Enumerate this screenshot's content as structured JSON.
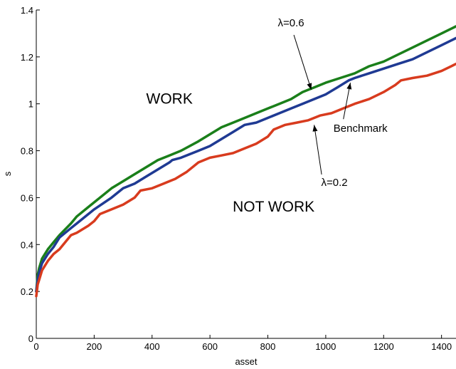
{
  "chart_data": {
    "type": "line",
    "title": "",
    "xlabel": "asset",
    "ylabel": "s",
    "xlim": [
      0,
      1450
    ],
    "ylim": [
      0,
      1.4
    ],
    "xticks": [
      0,
      200,
      400,
      600,
      800,
      1000,
      1200,
      1400
    ],
    "yticks": [
      0,
      0.2,
      0.4,
      0.6,
      0.8,
      1,
      1.2,
      1.4
    ],
    "xtick_labels": [
      "0",
      "200",
      "400",
      "600",
      "800",
      "1000",
      "1200",
      "1400"
    ],
    "ytick_labels": [
      "0",
      "0.2",
      "0.4",
      "0.6",
      "0.8",
      "1",
      "1.2",
      "1.4"
    ],
    "grid": false,
    "series": [
      {
        "color": "#1a7f1a",
        "x": [
          0,
          5,
          10,
          20,
          40,
          60,
          80,
          120,
          140,
          180,
          200,
          260,
          300,
          340,
          380,
          420,
          460,
          500,
          560,
          600,
          640,
          680,
          720,
          760,
          800,
          840,
          880,
          920,
          960,
          1000,
          1050,
          1100,
          1150,
          1200,
          1250,
          1300,
          1350,
          1400,
          1450
        ],
        "y": [
          0.2,
          0.27,
          0.3,
          0.34,
          0.38,
          0.41,
          0.44,
          0.49,
          0.52,
          0.56,
          0.58,
          0.64,
          0.67,
          0.7,
          0.73,
          0.76,
          0.78,
          0.8,
          0.84,
          0.87,
          0.9,
          0.92,
          0.94,
          0.96,
          0.98,
          1.0,
          1.02,
          1.05,
          1.07,
          1.09,
          1.11,
          1.13,
          1.16,
          1.18,
          1.21,
          1.24,
          1.27,
          1.3,
          1.33
        ]
      },
      {
        "color": "#1f3a93",
        "x": [
          0,
          5,
          10,
          20,
          40,
          60,
          80,
          120,
          140,
          180,
          200,
          260,
          300,
          340,
          380,
          420,
          460,
          470,
          500,
          560,
          600,
          640,
          680,
          720,
          760,
          800,
          840,
          880,
          920,
          960,
          1000,
          1040,
          1080,
          1100,
          1150,
          1200,
          1250,
          1300,
          1350,
          1400,
          1450
        ],
        "y": [
          0.2,
          0.25,
          0.28,
          0.32,
          0.36,
          0.39,
          0.43,
          0.47,
          0.49,
          0.53,
          0.55,
          0.6,
          0.64,
          0.66,
          0.69,
          0.72,
          0.75,
          0.76,
          0.77,
          0.8,
          0.82,
          0.85,
          0.88,
          0.91,
          0.92,
          0.94,
          0.96,
          0.98,
          1.0,
          1.02,
          1.04,
          1.07,
          1.1,
          1.11,
          1.13,
          1.15,
          1.17,
          1.19,
          1.22,
          1.25,
          1.28
        ]
      },
      {
        "color": "#d83b1e",
        "x": [
          0,
          5,
          10,
          20,
          40,
          60,
          80,
          100,
          120,
          140,
          180,
          200,
          220,
          260,
          300,
          340,
          360,
          400,
          440,
          480,
          520,
          560,
          600,
          640,
          680,
          720,
          760,
          800,
          820,
          860,
          900,
          940,
          980,
          1020,
          1060,
          1100,
          1150,
          1200,
          1240,
          1260,
          1300,
          1350,
          1400,
          1450
        ],
        "y": [
          0.18,
          0.23,
          0.25,
          0.29,
          0.33,
          0.36,
          0.38,
          0.41,
          0.44,
          0.45,
          0.48,
          0.5,
          0.53,
          0.55,
          0.57,
          0.6,
          0.63,
          0.64,
          0.66,
          0.68,
          0.71,
          0.75,
          0.77,
          0.78,
          0.79,
          0.81,
          0.83,
          0.86,
          0.89,
          0.91,
          0.92,
          0.93,
          0.95,
          0.96,
          0.98,
          1.0,
          1.02,
          1.05,
          1.08,
          1.1,
          1.11,
          1.12,
          1.14,
          1.17
        ]
      }
    ],
    "annotations": [
      {
        "text": "WORK",
        "x": 460,
        "y": 1.0
      },
      {
        "text": "NOT WORK",
        "x": 820,
        "y": 0.54
      },
      {
        "text": "λ=0.6",
        "x": 880,
        "y": 1.33,
        "arrow_to": [
          950,
          1.06
        ]
      },
      {
        "text": "Benchmark",
        "x": 1120,
        "y": 0.88,
        "arrow_to": [
          1085,
          1.09
        ]
      },
      {
        "text": "λ=0.2",
        "x": 1030,
        "y": 0.65,
        "arrow_to": [
          960,
          0.91
        ]
      }
    ]
  }
}
